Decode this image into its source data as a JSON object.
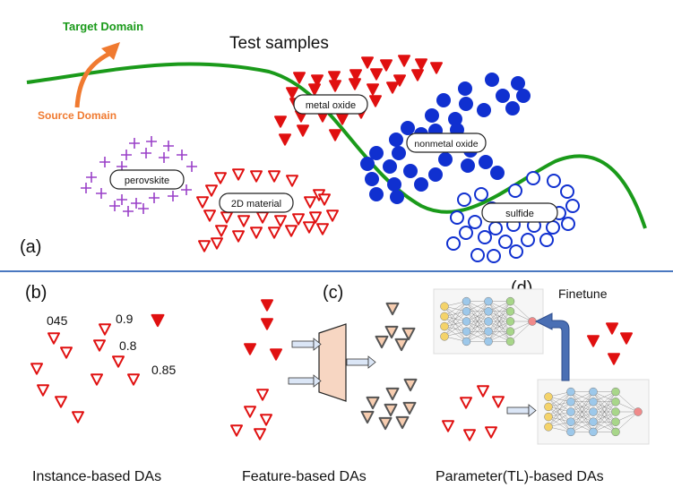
{
  "top": {
    "title": "Test samples",
    "target_domain": "Target Domain",
    "source_domain": "Source Domain",
    "panel_label": "(a)",
    "labels": {
      "perovskite": "perovskite",
      "material_2d": "2D material",
      "metal_oxide": "metal oxide",
      "nonmetal_oxide": "nonmetal oxide",
      "sulfide": "sulfide"
    }
  },
  "bottom": {
    "b": {
      "panel_label": "(b)",
      "weights": [
        "045",
        "0.9",
        "0.8",
        "0.85"
      ],
      "caption": "Instance-based DAs"
    },
    "c": {
      "panel_label": "(c)",
      "caption": "Feature-based DAs"
    },
    "d": {
      "panel_label": "(d)",
      "finetune": "Finetune",
      "caption": "Parameter(TL)-based DAs"
    }
  },
  "colors": {
    "red": "#e01010",
    "blue": "#1030d0",
    "purple": "#9a40c8",
    "green": "#1a9a1a",
    "orange": "#f07a30",
    "divider": "#4a78c0",
    "peach": "#f7cdb0",
    "arrow_blue": "#4a6fb4"
  }
}
